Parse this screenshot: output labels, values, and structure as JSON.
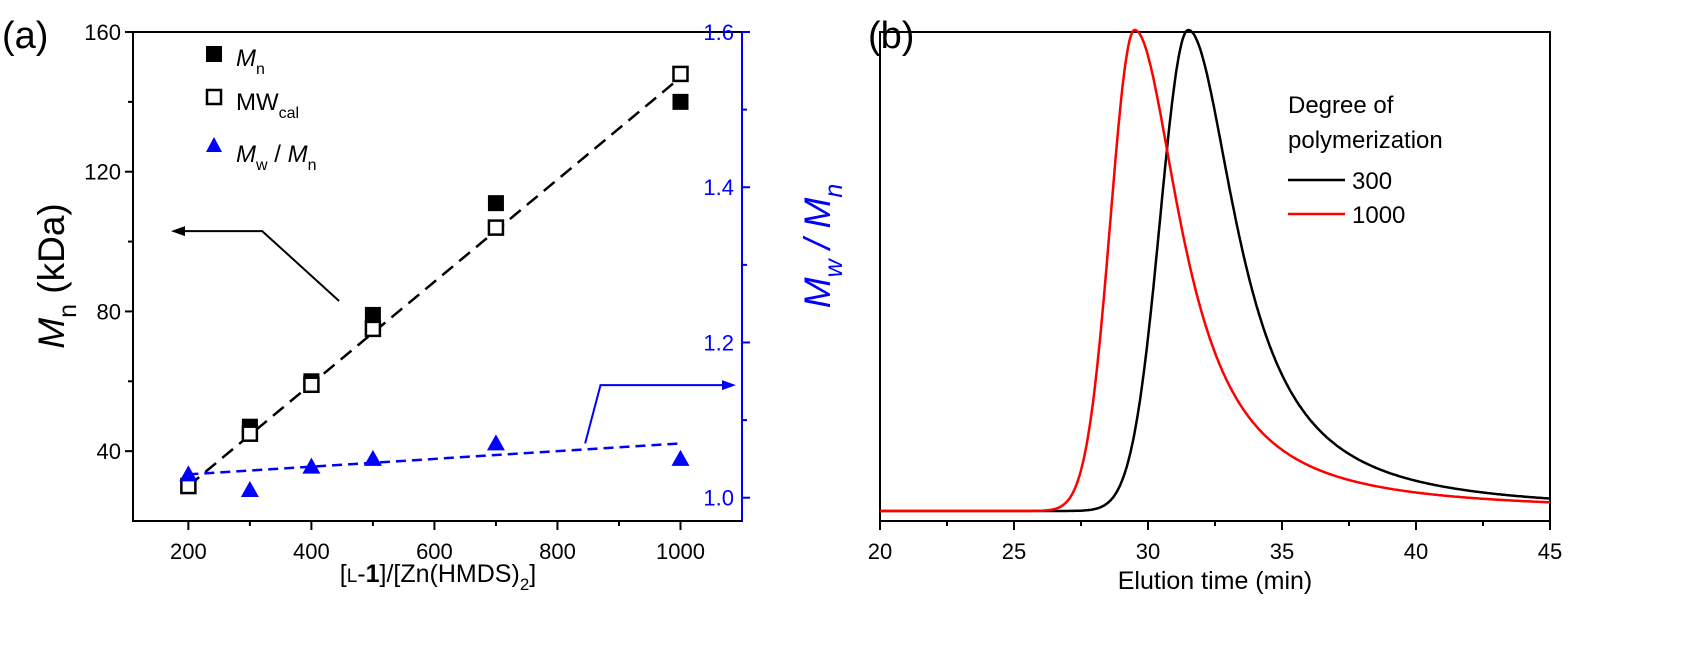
{
  "colors": {
    "black": "#000000",
    "blue": "#0000ff",
    "red": "#ff0000"
  },
  "chart_data": [
    {
      "panel_label": "(a)",
      "type": "scatter",
      "xlabel": {
        "pre": "[",
        "mid1": "L",
        "mid2": "-",
        "bold": "1",
        "mid3": "]/[Zn(HMDS)",
        "sub": "2",
        "post": "]"
      },
      "xlim": [
        110,
        1100
      ],
      "xticks": [
        "200",
        "400",
        "600",
        "800",
        "1000"
      ],
      "xtick_values": [
        200,
        400,
        600,
        800,
        1000
      ],
      "minor_xtick_values": [
        300,
        500,
        700,
        900
      ],
      "ylabel_left": {
        "main": "M",
        "sub": "n",
        "unit": " (kDa)"
      },
      "ylim_left": [
        20,
        160
      ],
      "yticks_left": [
        "40",
        "80",
        "120",
        "160"
      ],
      "ytick_values_left": [
        40,
        80,
        120,
        160
      ],
      "ylabel_right": {
        "a": "M",
        "a_sub": "w",
        "slash": " / ",
        "b": "M",
        "b_sub": "n"
      },
      "ylim_right": [
        0.97,
        1.6
      ],
      "yticks_right": [
        "1.0",
        "1.2",
        "1.4",
        "1.6"
      ],
      "ytick_values_right": [
        1.0,
        1.2,
        1.4,
        1.6
      ],
      "legend": [
        {
          "main": "M",
          "sub": "n",
          "marker": "filled-square"
        },
        {
          "main": "MW",
          "sub": "cal",
          "marker": "open-square"
        },
        {
          "main": "M",
          "sub": "w",
          "slash": " / ",
          "main2": "M",
          "sub2": "n",
          "marker": "filled-triangle"
        }
      ],
      "series": [
        {
          "name": "Mn",
          "marker": "filled-square",
          "axis": "left",
          "x": [
            300,
            400,
            500,
            700,
            1000
          ],
          "y": [
            47,
            60,
            79,
            111,
            140
          ]
        },
        {
          "name": "MWcal",
          "marker": "open-square",
          "axis": "left",
          "x": [
            200,
            300,
            400,
            500,
            700,
            1000
          ],
          "y": [
            30,
            45,
            59,
            75,
            104,
            148
          ]
        },
        {
          "name": "Mw/Mn",
          "marker": "filled-triangle",
          "axis": "right",
          "x": [
            200,
            300,
            400,
            500,
            700,
            1000
          ],
          "y": [
            1.03,
            1.01,
            1.04,
            1.05,
            1.07,
            1.05
          ]
        }
      ],
      "fits": [
        {
          "name": "Mn fit",
          "axis": "left",
          "x": [
            200,
            1000
          ],
          "y": [
            30,
            147
          ],
          "style": "dashed"
        },
        {
          "name": "PDI fit",
          "axis": "right",
          "x": [
            200,
            1000
          ],
          "y": [
            1.03,
            1.07
          ],
          "style": "dashed"
        }
      ],
      "annotations": [
        {
          "text": "arrow to left axis",
          "direction": "left"
        },
        {
          "text": "arrow to right axis",
          "direction": "right"
        }
      ]
    },
    {
      "panel_label": "(b)",
      "type": "line",
      "xlabel": "Elution time (min)",
      "xlim": [
        20,
        45
      ],
      "xticks": [
        "20",
        "25",
        "30",
        "35",
        "40",
        "45"
      ],
      "xtick_values": [
        20,
        25,
        30,
        35,
        40,
        45
      ],
      "minor_xtick_values": [
        22.5,
        27.5,
        32.5,
        37.5,
        42.5
      ],
      "ylim": [
        0,
        1.1
      ],
      "legend_title": [
        "Degree of",
        "polymerization"
      ],
      "series": [
        {
          "name": "300",
          "color": "#000000",
          "peak": 31.5,
          "sigma_left": 1.05,
          "tail": 2.2,
          "height": 1.0
        },
        {
          "name": "1000",
          "color": "#ff0000",
          "peak": 29.5,
          "sigma_left": 0.9,
          "tail": 2.1,
          "height": 1.0
        }
      ]
    }
  ]
}
